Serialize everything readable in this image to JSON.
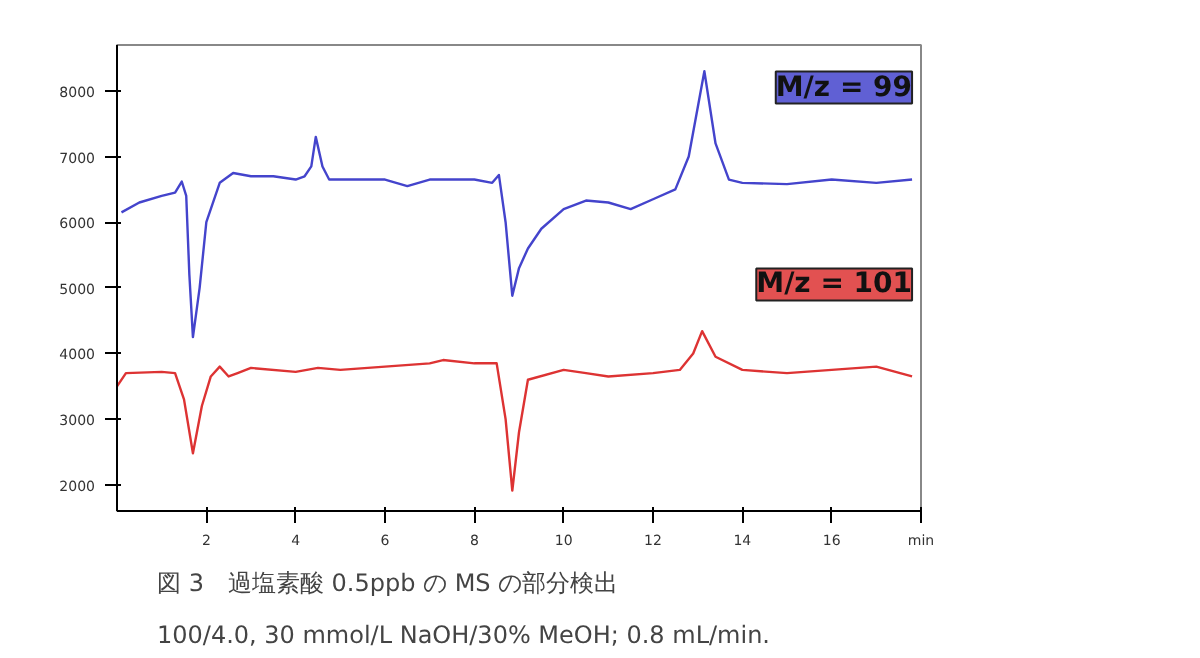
{
  "chart_data": {
    "type": "line",
    "title": "図 3　過塩素酸 0.5ppb の MS の部分検出",
    "annotations": [
      "100/4.0, 30 mmol/L NaOH/30% MeOH; 0.8 mL/min."
    ],
    "xlim": [
      0,
      18
    ],
    "ylim": [
      1600,
      8700
    ],
    "xticks": [
      2,
      4,
      6,
      8,
      10,
      12,
      14,
      16,
      {
        "value": 18,
        "label": "min"
      }
    ],
    "yticks": [
      2000,
      3000,
      4000,
      5000,
      6000,
      7000,
      8000
    ],
    "grid": false,
    "marker": "none",
    "line_style": "solid",
    "series": [
      {
        "name": "M/z = 99",
        "color": "#4444cc",
        "x": [
          0.1,
          0.5,
          1.0,
          1.3,
          1.45,
          1.55,
          1.62,
          1.7,
          1.85,
          2.0,
          2.3,
          2.6,
          3.0,
          3.5,
          4.0,
          4.2,
          4.35,
          4.45,
          4.6,
          4.75,
          5.0,
          6.0,
          6.5,
          7.0,
          8.0,
          8.4,
          8.55,
          8.7,
          8.85,
          9.0,
          9.2,
          9.5,
          10.0,
          10.5,
          11.0,
          11.5,
          12.0,
          12.5,
          12.8,
          13.15,
          13.4,
          13.7,
          14.0,
          15.0,
          16.0,
          17.0,
          17.8
        ],
        "values": [
          6150,
          6300,
          6400,
          6450,
          6620,
          6400,
          5200,
          4250,
          5000,
          6000,
          6600,
          6750,
          6700,
          6700,
          6650,
          6700,
          6850,
          7300,
          6850,
          6650,
          6650,
          6650,
          6550,
          6650,
          6650,
          6600,
          6720,
          6000,
          4880,
          5300,
          5600,
          5900,
          6200,
          6330,
          6300,
          6200,
          6350,
          6500,
          7000,
          8300,
          7200,
          6650,
          6600,
          6580,
          6650,
          6600,
          6650
        ]
      },
      {
        "name": "M/z = 101",
        "color": "#dd3333",
        "x": [
          0.0,
          0.2,
          1.0,
          1.3,
          1.5,
          1.7,
          1.9,
          2.1,
          2.3,
          2.5,
          2.7,
          3.0,
          4.0,
          4.5,
          5.0,
          6.0,
          7.0,
          7.3,
          8.0,
          8.5,
          8.7,
          8.85,
          9.0,
          9.2,
          10.0,
          10.5,
          11.0,
          12.0,
          12.6,
          12.9,
          13.1,
          13.4,
          14.0,
          15.0,
          16.0,
          17.0,
          17.8
        ],
        "values": [
          3500,
          3700,
          3720,
          3700,
          3300,
          2480,
          3200,
          3650,
          3800,
          3650,
          3700,
          3780,
          3720,
          3780,
          3750,
          3800,
          3850,
          3900,
          3850,
          3850,
          3000,
          1910,
          2800,
          3600,
          3750,
          3700,
          3650,
          3700,
          3750,
          4000,
          4340,
          3950,
          3750,
          3700,
          3750,
          3800,
          3650
        ]
      }
    ]
  }
}
